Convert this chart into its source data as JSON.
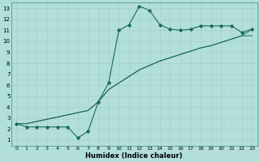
{
  "xlabel": "Humidex (Indice chaleur)",
  "bg_color": "#b2dfdb",
  "grid_color": "#c8e8e5",
  "line_color": "#1a6b5a",
  "xlim": [
    -0.5,
    23.5
  ],
  "ylim": [
    0.5,
    13.5
  ],
  "xticks": [
    0,
    1,
    2,
    3,
    4,
    5,
    6,
    7,
    8,
    9,
    10,
    11,
    12,
    13,
    14,
    15,
    16,
    17,
    18,
    19,
    20,
    21,
    22,
    23
  ],
  "yticks": [
    1,
    2,
    3,
    4,
    5,
    6,
    7,
    8,
    9,
    10,
    11,
    12,
    13
  ],
  "line_jagged_x": [
    0,
    1,
    2,
    3,
    4,
    5,
    6,
    7,
    8,
    9,
    10,
    11,
    12,
    13,
    14,
    15,
    16,
    17,
    18,
    19,
    20,
    21,
    22,
    23
  ],
  "line_jagged_y": [
    2.5,
    2.2,
    2.2,
    2.2,
    2.2,
    2.2,
    1.2,
    1.8,
    4.5,
    6.2,
    11.0,
    11.5,
    13.2,
    12.8,
    11.5,
    11.1,
    11.0,
    11.1,
    11.4,
    11.4,
    11.4,
    11.4,
    10.8,
    11.1
  ],
  "line_trend1_x": [
    0,
    1,
    2,
    3,
    4,
    5,
    6,
    7,
    8,
    9,
    10,
    11,
    12,
    13,
    14,
    15,
    16,
    17,
    18,
    19,
    20,
    21,
    22,
    23
  ],
  "line_trend1_y": [
    2.5,
    2.5,
    2.7,
    2.9,
    3.1,
    3.3,
    3.5,
    3.7,
    4.5,
    5.6,
    6.2,
    6.8,
    7.4,
    7.8,
    8.2,
    8.5,
    8.8,
    9.1,
    9.4,
    9.6,
    9.9,
    10.2,
    10.5,
    11.1
  ],
  "line_trend2_x": [
    0,
    1,
    2,
    3,
    4,
    5,
    6,
    7,
    8,
    9,
    10,
    11,
    12,
    13,
    14,
    15,
    16,
    17,
    18,
    19,
    20,
    21,
    22,
    23
  ],
  "line_trend2_y": [
    2.5,
    2.5,
    2.7,
    2.9,
    3.1,
    3.3,
    3.5,
    3.7,
    4.5,
    5.6,
    6.2,
    6.8,
    7.4,
    7.8,
    8.2,
    8.5,
    8.8,
    9.1,
    9.4,
    9.6,
    9.9,
    10.2,
    10.5,
    10.5
  ]
}
